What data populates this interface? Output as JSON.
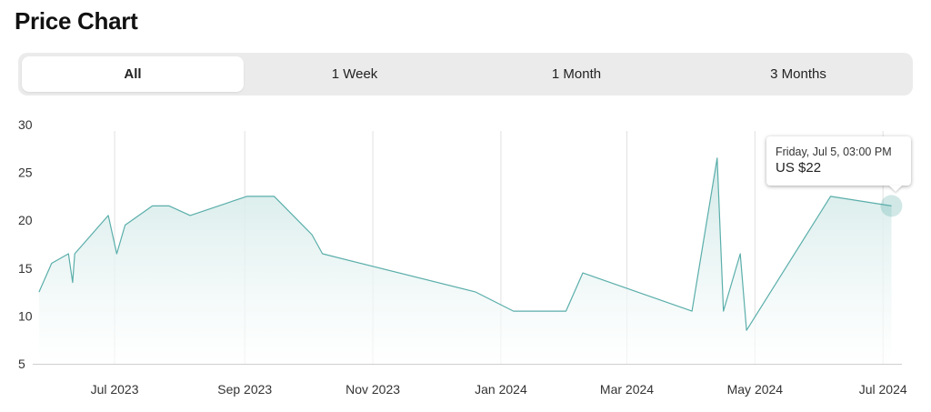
{
  "page": {
    "title": "Price Chart"
  },
  "tabs": [
    {
      "label": "All",
      "active": true
    },
    {
      "label": "1 Week",
      "active": false
    },
    {
      "label": "1 Month",
      "active": false
    },
    {
      "label": "3 Months",
      "active": false
    }
  ],
  "tooltip": {
    "date": "Friday, Jul 5, 03:00 PM",
    "price": "US $22"
  },
  "colors": {
    "line": "#5aaeaa",
    "fill_top": "#cfe8e6",
    "fill_bottom": "#ffffff",
    "grid": "#e1e1e1",
    "axis": "#cfcfcf"
  },
  "chart_data": {
    "type": "area",
    "title": "",
    "xlabel": "",
    "ylabel": "",
    "ylim": [
      5,
      30
    ],
    "y_ticks": [
      30,
      25,
      20,
      15,
      10,
      5
    ],
    "xlim": [
      "2023-05-23",
      "2024-07-10"
    ],
    "x_ticks": [
      {
        "date": "2023-07-01",
        "label": "Jul 2023"
      },
      {
        "date": "2023-09-01",
        "label": "Sep 2023"
      },
      {
        "date": "2023-11-01",
        "label": "Nov 2023"
      },
      {
        "date": "2024-01-01",
        "label": "Jan 2024"
      },
      {
        "date": "2024-03-01",
        "label": "Mar 2024"
      },
      {
        "date": "2024-05-01",
        "label": "May 2024"
      },
      {
        "date": "2024-07-01",
        "label": "Jul 2024"
      }
    ],
    "grid": true,
    "series": [
      {
        "points": [
          {
            "x": "2023-05-26",
            "y": 12.5
          },
          {
            "x": "2023-06-01",
            "y": 15.5
          },
          {
            "x": "2023-06-09",
            "y": 16.5
          },
          {
            "x": "2023-06-11",
            "y": 13.5
          },
          {
            "x": "2023-06-12",
            "y": 16.5
          },
          {
            "x": "2023-06-28",
            "y": 20.5
          },
          {
            "x": "2023-07-02",
            "y": 16.5
          },
          {
            "x": "2023-07-06",
            "y": 19.5
          },
          {
            "x": "2023-07-19",
            "y": 21.5
          },
          {
            "x": "2023-07-27",
            "y": 21.5
          },
          {
            "x": "2023-08-06",
            "y": 20.5
          },
          {
            "x": "2023-09-02",
            "y": 22.5
          },
          {
            "x": "2023-09-15",
            "y": 22.5
          },
          {
            "x": "2023-10-03",
            "y": 18.5
          },
          {
            "x": "2023-10-08",
            "y": 16.5
          },
          {
            "x": "2023-12-20",
            "y": 12.5
          },
          {
            "x": "2024-01-07",
            "y": 10.5
          },
          {
            "x": "2024-02-01",
            "y": 10.5
          },
          {
            "x": "2024-02-09",
            "y": 14.5
          },
          {
            "x": "2024-04-01",
            "y": 10.5
          },
          {
            "x": "2024-04-13",
            "y": 26.5
          },
          {
            "x": "2024-04-16",
            "y": 10.5
          },
          {
            "x": "2024-04-24",
            "y": 16.5
          },
          {
            "x": "2024-04-27",
            "y": 8.5
          },
          {
            "x": "2024-06-06",
            "y": 22.5
          },
          {
            "x": "2024-07-05",
            "y": 21.5
          }
        ]
      }
    ],
    "highlight": {
      "x": "2024-07-05",
      "y": 21.5
    }
  }
}
